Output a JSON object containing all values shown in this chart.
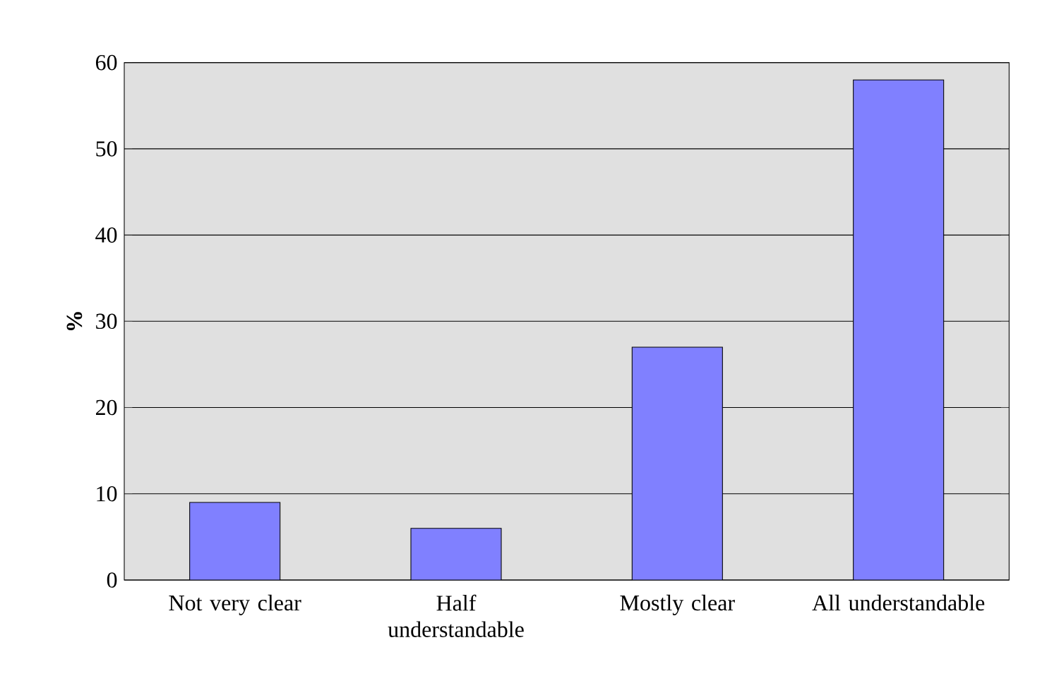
{
  "chart_data": {
    "type": "bar",
    "ylabel": "%",
    "categories": [
      "Not very clear",
      "Half understandable",
      "Mostly clear",
      "All understandable"
    ],
    "values": [
      9,
      6,
      27,
      58
    ],
    "color": "#8080ff",
    "ylim": [
      0,
      60
    ],
    "yticks": [
      0,
      10,
      20,
      30,
      40,
      50,
      60
    ],
    "grid": "y"
  }
}
